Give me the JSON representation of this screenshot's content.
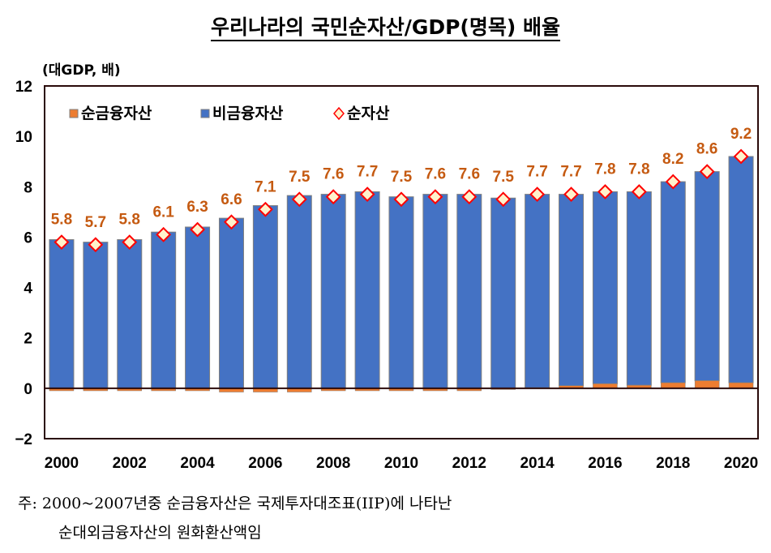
{
  "chart_data": {
    "type": "bar",
    "stacked": true,
    "title": "우리나라의 국민순자산/GDP(명목) 배율",
    "ylabel": "(대GDP, 배)",
    "ylim": [
      -2,
      12
    ],
    "yticks": [
      -2,
      0,
      2,
      4,
      6,
      8,
      10,
      12
    ],
    "xtick_labels": [
      "2000",
      "2002",
      "2004",
      "2006",
      "2008",
      "2010",
      "2012",
      "2014",
      "2016",
      "2018",
      "2020"
    ],
    "categories": [
      "2000",
      "2001",
      "2002",
      "2003",
      "2004",
      "2005",
      "2006",
      "2007",
      "2008",
      "2009",
      "2010",
      "2011",
      "2012",
      "2013",
      "2014",
      "2015",
      "2016",
      "2017",
      "2018",
      "2019",
      "2020"
    ],
    "grid": false,
    "legend_position": "top-left",
    "series": [
      {
        "name": "순금융자산",
        "kind": "bar",
        "color": "#ed7d31",
        "values": [
          -0.1,
          -0.1,
          -0.1,
          -0.1,
          -0.1,
          -0.15,
          -0.15,
          -0.15,
          -0.1,
          -0.1,
          -0.1,
          -0.1,
          -0.1,
          -0.05,
          0.02,
          0.1,
          0.18,
          0.12,
          0.22,
          0.3,
          0.22
        ]
      },
      {
        "name": "비금융자산",
        "kind": "bar",
        "color": "#4472c4",
        "values": [
          5.9,
          5.8,
          5.9,
          6.2,
          6.4,
          6.75,
          7.25,
          7.65,
          7.7,
          7.8,
          7.6,
          7.7,
          7.7,
          7.55,
          7.68,
          7.6,
          7.62,
          7.68,
          7.98,
          8.3,
          8.98
        ]
      },
      {
        "name": "순자산",
        "kind": "marker",
        "color": "#ff0000",
        "values": [
          5.8,
          5.7,
          5.8,
          6.1,
          6.3,
          6.6,
          7.1,
          7.5,
          7.6,
          7.7,
          7.5,
          7.6,
          7.6,
          7.5,
          7.7,
          7.7,
          7.8,
          7.8,
          8.2,
          8.6,
          9.2
        ]
      }
    ]
  },
  "note": {
    "line1": "주: 2000~2007년중 순금융자산은 국제투자대조표(IIP)에 나타난",
    "line2": "순대외금융자산의 원화환산액임"
  }
}
